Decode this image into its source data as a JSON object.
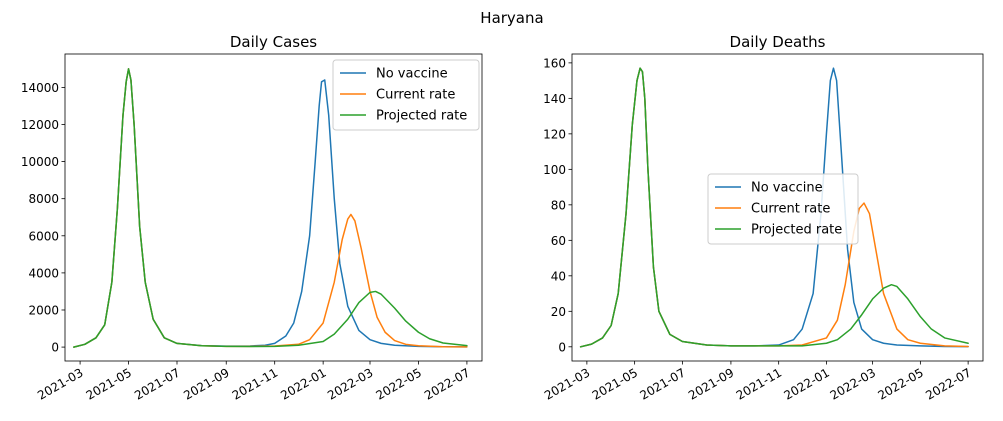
{
  "figure_title": "Haryana",
  "colors": {
    "no_vaccine": "#1f77b4",
    "current_rate": "#ff7f0e",
    "projected_rate": "#2ca02c"
  },
  "chart_data": [
    {
      "type": "line",
      "title": "Daily Cases",
      "xlabel": "",
      "ylabel": "",
      "x_type": "date",
      "xlim": [
        "2021-02-10",
        "2022-07-20"
      ],
      "ylim": [
        -750,
        15800
      ],
      "x_ticks": [
        "2021-03",
        "2021-05",
        "2021-07",
        "2021-09",
        "2021-11",
        "2022-01",
        "2022-03",
        "2022-05",
        "2022-07"
      ],
      "y_ticks": [
        0,
        2000,
        4000,
        6000,
        8000,
        10000,
        12000,
        14000
      ],
      "legend": {
        "placement": "upper right"
      },
      "grid": false,
      "series": [
        {
          "name": "No vaccine",
          "color": "#1f77b4",
          "x": [
            "2021-02-21",
            "2021-03-07",
            "2021-03-21",
            "2021-04-01",
            "2021-04-10",
            "2021-04-17",
            "2021-04-24",
            "2021-04-28",
            "2021-05-01",
            "2021-05-04",
            "2021-05-08",
            "2021-05-15",
            "2021-05-22",
            "2021-06-01",
            "2021-06-15",
            "2021-07-01",
            "2021-08-01",
            "2021-09-01",
            "2021-10-01",
            "2021-10-20",
            "2021-11-01",
            "2021-11-15",
            "2021-11-25",
            "2021-12-05",
            "2021-12-15",
            "2021-12-22",
            "2021-12-27",
            "2021-12-30",
            "2022-01-03",
            "2022-01-08",
            "2022-01-15",
            "2022-01-22",
            "2022-02-01",
            "2022-02-15",
            "2022-03-01",
            "2022-03-15",
            "2022-04-01",
            "2022-05-01",
            "2022-06-01",
            "2022-07-01"
          ],
          "values": [
            0,
            150,
            500,
            1200,
            3500,
            7500,
            12500,
            14300,
            15000,
            14400,
            12000,
            6500,
            3500,
            1500,
            500,
            200,
            80,
            50,
            60,
            100,
            200,
            600,
            1300,
            3000,
            6000,
            10000,
            13000,
            14300,
            14400,
            12500,
            8000,
            4500,
            2200,
            900,
            400,
            200,
            100,
            40,
            20,
            10
          ]
        },
        {
          "name": "Current rate",
          "color": "#ff7f0e",
          "x": [
            "2021-02-21",
            "2021-03-07",
            "2021-03-21",
            "2021-04-01",
            "2021-04-10",
            "2021-04-17",
            "2021-04-24",
            "2021-04-28",
            "2021-05-01",
            "2021-05-04",
            "2021-05-08",
            "2021-05-15",
            "2021-05-22",
            "2021-06-01",
            "2021-06-15",
            "2021-07-01",
            "2021-08-01",
            "2021-09-01",
            "2021-10-01",
            "2021-11-01",
            "2021-12-01",
            "2021-12-15",
            "2022-01-01",
            "2022-01-15",
            "2022-01-25",
            "2022-02-01",
            "2022-02-05",
            "2022-02-10",
            "2022-02-18",
            "2022-03-01",
            "2022-03-10",
            "2022-03-20",
            "2022-04-01",
            "2022-04-15",
            "2022-05-01",
            "2022-06-01",
            "2022-07-01"
          ],
          "values": [
            0,
            150,
            500,
            1200,
            3500,
            7500,
            12500,
            14300,
            15000,
            14400,
            12000,
            6500,
            3500,
            1500,
            500,
            200,
            70,
            40,
            40,
            60,
            150,
            400,
            1300,
            3500,
            5800,
            6900,
            7150,
            6800,
            5300,
            3000,
            1600,
            800,
            350,
            150,
            70,
            20,
            10
          ]
        },
        {
          "name": "Projected rate",
          "color": "#2ca02c",
          "x": [
            "2021-02-21",
            "2021-03-07",
            "2021-03-21",
            "2021-04-01",
            "2021-04-10",
            "2021-04-17",
            "2021-04-24",
            "2021-04-28",
            "2021-05-01",
            "2021-05-04",
            "2021-05-08",
            "2021-05-15",
            "2021-05-22",
            "2021-06-01",
            "2021-06-15",
            "2021-07-01",
            "2021-08-01",
            "2021-09-01",
            "2021-10-01",
            "2021-11-01",
            "2021-12-01",
            "2022-01-01",
            "2022-01-15",
            "2022-02-01",
            "2022-02-15",
            "2022-03-01",
            "2022-03-08",
            "2022-03-15",
            "2022-04-01",
            "2022-04-15",
            "2022-05-01",
            "2022-05-15",
            "2022-06-01",
            "2022-07-01"
          ],
          "values": [
            0,
            150,
            500,
            1200,
            3500,
            7500,
            12500,
            14300,
            15000,
            14400,
            12000,
            6500,
            3500,
            1500,
            500,
            200,
            70,
            40,
            30,
            40,
            100,
            300,
            700,
            1500,
            2400,
            2950,
            3000,
            2850,
            2100,
            1400,
            800,
            450,
            220,
            80
          ]
        }
      ]
    },
    {
      "type": "line",
      "title": "Daily Deaths",
      "xlabel": "",
      "ylabel": "",
      "x_type": "date",
      "xlim": [
        "2021-02-10",
        "2022-07-20"
      ],
      "ylim": [
        -8,
        165
      ],
      "x_ticks": [
        "2021-03",
        "2021-05",
        "2021-07",
        "2021-09",
        "2021-11",
        "2022-01",
        "2022-03",
        "2022-05",
        "2022-07"
      ],
      "y_ticks": [
        0,
        20,
        40,
        60,
        80,
        100,
        120,
        140,
        160
      ],
      "legend": {
        "placement": "center"
      },
      "grid": false,
      "series": [
        {
          "name": "No vaccine",
          "color": "#1f77b4",
          "x": [
            "2021-02-21",
            "2021-03-07",
            "2021-03-21",
            "2021-04-01",
            "2021-04-10",
            "2021-04-20",
            "2021-04-28",
            "2021-05-04",
            "2021-05-08",
            "2021-05-11",
            "2021-05-14",
            "2021-05-18",
            "2021-05-25",
            "2021-06-01",
            "2021-06-15",
            "2021-07-01",
            "2021-08-01",
            "2021-09-01",
            "2021-10-01",
            "2021-11-01",
            "2021-11-20",
            "2021-12-01",
            "2021-12-15",
            "2021-12-25",
            "2022-01-01",
            "2022-01-06",
            "2022-01-10",
            "2022-01-14",
            "2022-01-20",
            "2022-01-28",
            "2022-02-05",
            "2022-02-15",
            "2022-03-01",
            "2022-03-15",
            "2022-04-01",
            "2022-05-01",
            "2022-06-01",
            "2022-07-01"
          ],
          "values": [
            0,
            1.5,
            5,
            12,
            30,
            75,
            125,
            150,
            157,
            155,
            140,
            100,
            45,
            20,
            7,
            3,
            1,
            0.5,
            0.5,
            1,
            4,
            10,
            30,
            75,
            120,
            150,
            157,
            150,
            110,
            55,
            25,
            10,
            4,
            2,
            1,
            0.5,
            0.2,
            0.1
          ]
        },
        {
          "name": "Current rate",
          "color": "#ff7f0e",
          "x": [
            "2021-02-21",
            "2021-03-07",
            "2021-03-21",
            "2021-04-01",
            "2021-04-10",
            "2021-04-20",
            "2021-04-28",
            "2021-05-04",
            "2021-05-08",
            "2021-05-11",
            "2021-05-14",
            "2021-05-18",
            "2021-05-25",
            "2021-06-01",
            "2021-06-15",
            "2021-07-01",
            "2021-08-01",
            "2021-09-01",
            "2021-10-01",
            "2021-11-01",
            "2021-12-01",
            "2022-01-01",
            "2022-01-15",
            "2022-01-25",
            "2022-02-05",
            "2022-02-12",
            "2022-02-18",
            "2022-02-25",
            "2022-03-05",
            "2022-03-15",
            "2022-04-01",
            "2022-04-15",
            "2022-05-01",
            "2022-06-01",
            "2022-07-01"
          ],
          "values": [
            0,
            1.5,
            5,
            12,
            30,
            75,
            125,
            150,
            157,
            155,
            140,
            100,
            45,
            20,
            7,
            3,
            1,
            0.5,
            0.5,
            0.5,
            1,
            5,
            15,
            35,
            65,
            78,
            81,
            75,
            55,
            30,
            10,
            4,
            2,
            0.5,
            0.2
          ]
        },
        {
          "name": "Projected rate",
          "color": "#2ca02c",
          "x": [
            "2021-02-21",
            "2021-03-07",
            "2021-03-21",
            "2021-04-01",
            "2021-04-10",
            "2021-04-20",
            "2021-04-28",
            "2021-05-04",
            "2021-05-08",
            "2021-05-11",
            "2021-05-14",
            "2021-05-18",
            "2021-05-25",
            "2021-06-01",
            "2021-06-15",
            "2021-07-01",
            "2021-08-01",
            "2021-09-01",
            "2021-10-01",
            "2021-11-01",
            "2021-12-01",
            "2022-01-01",
            "2022-01-15",
            "2022-02-01",
            "2022-02-15",
            "2022-03-01",
            "2022-03-15",
            "2022-03-25",
            "2022-04-01",
            "2022-04-15",
            "2022-05-01",
            "2022-05-15",
            "2022-06-01",
            "2022-07-01"
          ],
          "values": [
            0,
            1.5,
            5,
            12,
            30,
            75,
            125,
            150,
            157,
            155,
            140,
            100,
            45,
            20,
            7,
            3,
            1,
            0.5,
            0.5,
            0.5,
            0.5,
            2,
            4,
            10,
            18,
            27,
            33,
            35,
            34,
            27,
            17,
            10,
            5,
            2
          ]
        }
      ]
    }
  ]
}
